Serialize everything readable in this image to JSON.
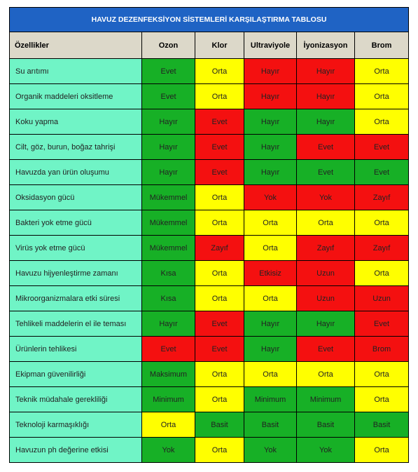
{
  "title": "HAVUZ DEZENFEKSİYON SİSTEMLERİ KARŞILAŞTIRMA TABLOSU",
  "headers": [
    "Özellikler",
    "Ozon",
    "Klor",
    "Ultraviyole",
    "İyonizasyon",
    "Brom"
  ],
  "colors": {
    "green": "#17b026",
    "yellow": "#ffff00",
    "red": "#f41010",
    "feature": "#70f4c6",
    "title_bg": "#1f63c4",
    "header_bg": "#dcd8c9"
  },
  "rows": [
    {
      "feature": "Su arıtımı",
      "cells": [
        [
          "Evet",
          "g"
        ],
        [
          "Orta",
          "y"
        ],
        [
          "Hayır",
          "r"
        ],
        [
          "Hayır",
          "r"
        ],
        [
          "Orta",
          "y"
        ]
      ]
    },
    {
      "feature": "Organik maddeleri oksitleme",
      "cells": [
        [
          "Evet",
          "g"
        ],
        [
          "Orta",
          "y"
        ],
        [
          "Hayır",
          "r"
        ],
        [
          "Hayır",
          "r"
        ],
        [
          "Orta",
          "y"
        ]
      ]
    },
    {
      "feature": "Koku yapma",
      "cells": [
        [
          "Hayır",
          "g"
        ],
        [
          "Evet",
          "r"
        ],
        [
          "Hayır",
          "g"
        ],
        [
          "Hayır",
          "g"
        ],
        [
          "Orta",
          "y"
        ]
      ]
    },
    {
      "feature": "Cilt, göz, burun, boğaz tahrişi",
      "cells": [
        [
          "Hayır",
          "g"
        ],
        [
          "Evet",
          "r"
        ],
        [
          "Hayır",
          "g"
        ],
        [
          "Evet",
          "r"
        ],
        [
          "Evet",
          "r"
        ]
      ]
    },
    {
      "feature": "Havuzda yan ürün oluşumu",
      "cells": [
        [
          "Hayır",
          "g"
        ],
        [
          "Evet",
          "r"
        ],
        [
          "Hayır",
          "g"
        ],
        [
          "Evet",
          "g"
        ],
        [
          "Evet",
          "g"
        ]
      ]
    },
    {
      "feature": "Oksidasyon gücü",
      "cells": [
        [
          "Mükemmel",
          "g"
        ],
        [
          "Orta",
          "y"
        ],
        [
          "Yok",
          "r"
        ],
        [
          "Yok",
          "r"
        ],
        [
          "Zayıf",
          "r"
        ]
      ]
    },
    {
      "feature": "Bakteri yok etme gücü",
      "cells": [
        [
          "Mükemmel",
          "g"
        ],
        [
          "Orta",
          "y"
        ],
        [
          "Orta",
          "y"
        ],
        [
          "Orta",
          "y"
        ],
        [
          "Orta",
          "y"
        ]
      ]
    },
    {
      "feature": "Virüs yok etme gücü",
      "cells": [
        [
          "Mükemmel",
          "g"
        ],
        [
          "Zayıf",
          "r"
        ],
        [
          "Orta",
          "y"
        ],
        [
          "Zayıf",
          "r"
        ],
        [
          "Zayıf",
          "r"
        ]
      ]
    },
    {
      "feature": "Havuzu hijyenleştirme zamanı",
      "cells": [
        [
          "Kısa",
          "g"
        ],
        [
          "Orta",
          "y"
        ],
        [
          "Etkisiz",
          "r"
        ],
        [
          "Uzun",
          "r"
        ],
        [
          "Orta",
          "y"
        ]
      ]
    },
    {
      "feature": "Mikroorganizmalara etki süresi",
      "cells": [
        [
          "Kısa",
          "g"
        ],
        [
          "Orta",
          "y"
        ],
        [
          "Orta",
          "y"
        ],
        [
          "Uzun",
          "r"
        ],
        [
          "Uzun",
          "r"
        ]
      ]
    },
    {
      "feature": "Tehlikeli maddelerin el ile teması",
      "cells": [
        [
          "Hayır",
          "g"
        ],
        [
          "Evet",
          "r"
        ],
        [
          "Hayır",
          "g"
        ],
        [
          "Hayır",
          "g"
        ],
        [
          "Evet",
          "r"
        ]
      ]
    },
    {
      "feature": "Ürünlerin tehlikesi",
      "cells": [
        [
          "Evet",
          "r"
        ],
        [
          "Evet",
          "r"
        ],
        [
          "Hayır",
          "g"
        ],
        [
          "Evet",
          "r"
        ],
        [
          "Brom",
          "r"
        ]
      ]
    },
    {
      "feature": "Ekipman güvenilirliği",
      "cells": [
        [
          "Maksimum",
          "g"
        ],
        [
          "Orta",
          "y"
        ],
        [
          "Orta",
          "y"
        ],
        [
          "Orta",
          "y"
        ],
        [
          "Orta",
          "y"
        ]
      ]
    },
    {
      "feature": "Teknik müdahale gerekliliği",
      "cells": [
        [
          "Minimum",
          "g"
        ],
        [
          "Orta",
          "y"
        ],
        [
          "Minimum",
          "g"
        ],
        [
          "Minimum",
          "g"
        ],
        [
          "Orta",
          "y"
        ]
      ]
    },
    {
      "feature": "Teknoloji karmaşıklığı",
      "cells": [
        [
          "Orta",
          "y"
        ],
        [
          "Basit",
          "g"
        ],
        [
          "Basit",
          "g"
        ],
        [
          "Basit",
          "g"
        ],
        [
          "Basit",
          "g"
        ]
      ]
    },
    {
      "feature": "Havuzun ph değerine etkisi",
      "cells": [
        [
          "Yok",
          "g"
        ],
        [
          "Orta",
          "y"
        ],
        [
          "Yok",
          "g"
        ],
        [
          "Yok",
          "g"
        ],
        [
          "Orta",
          "y"
        ]
      ]
    }
  ]
}
